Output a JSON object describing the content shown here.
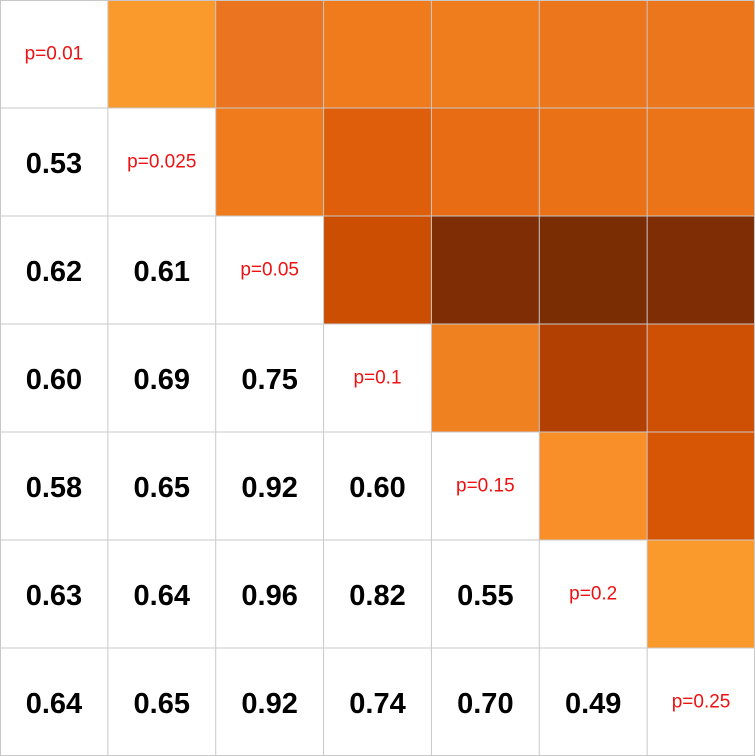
{
  "chart_data": {
    "type": "heatmap",
    "title": "",
    "labels": [
      "p=0.01",
      "p=0.025",
      "p=0.05",
      "p=0.1",
      "p=0.15",
      "p=0.2",
      "p=0.25"
    ],
    "lower_values": [
      [
        null,
        null,
        null,
        null,
        null,
        null,
        null
      ],
      [
        0.53,
        null,
        null,
        null,
        null,
        null,
        null
      ],
      [
        0.62,
        0.61,
        null,
        null,
        null,
        null,
        null
      ],
      [
        0.6,
        0.69,
        0.75,
        null,
        null,
        null,
        null
      ],
      [
        0.58,
        0.65,
        0.92,
        0.6,
        null,
        null,
        null
      ],
      [
        0.63,
        0.64,
        0.96,
        0.82,
        0.55,
        null,
        null
      ],
      [
        0.64,
        0.65,
        0.92,
        0.74,
        0.7,
        0.49,
        null
      ]
    ],
    "upper_colors": [
      [
        null,
        "#fb9a2c",
        "#eb7420",
        "#ef7b1c",
        "#ef7d1d",
        "#ec761c",
        "#ec761b"
      ],
      [
        null,
        null,
        "#ef7b1c",
        "#de5e0b",
        "#e86c14",
        "#ea7116",
        "#eb7318"
      ],
      [
        null,
        null,
        null,
        "#cc4e02",
        "#7f2d04",
        "#7a2c03",
        "#7f2d04"
      ],
      [
        null,
        null,
        null,
        null,
        "#f08120",
        "#b24003",
        "#ce5004"
      ],
      [
        null,
        null,
        null,
        null,
        null,
        "#f88f28",
        "#d75606"
      ],
      [
        null,
        null,
        null,
        null,
        null,
        null,
        "#fb9a2c"
      ],
      [
        null,
        null,
        null,
        null,
        null,
        null,
        null
      ]
    ],
    "colormap": "Oranges"
  }
}
